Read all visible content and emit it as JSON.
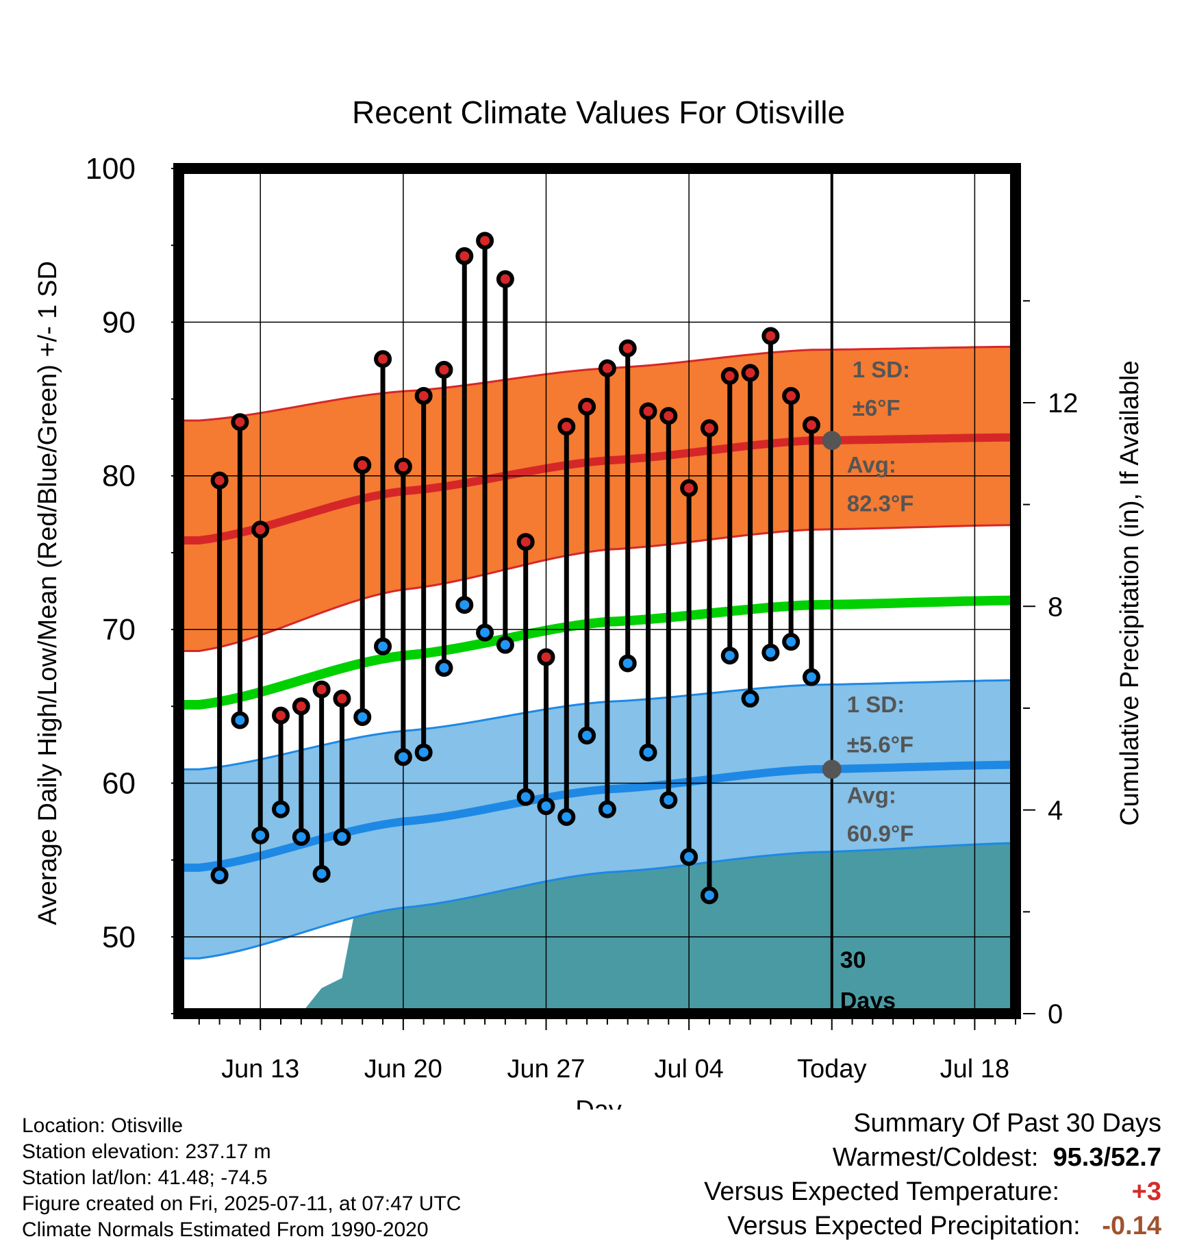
{
  "chart_data": {
    "type": "line",
    "title": "Recent Climate Values For Otisville",
    "xlabel": "Day",
    "ylabel": "Average Daily High/Low/Mean (Red/Blue/Green) +/- 1 SD",
    "y2label": "Cumulative Precipitation (in), If Available",
    "ylim": [
      45,
      100
    ],
    "y2lim": [
      0,
      16.6
    ],
    "yticks": [
      "50",
      "60",
      "70",
      "80",
      "90",
      "100"
    ],
    "y2ticks": [
      "0",
      "4",
      "8",
      "12"
    ],
    "xticks": [
      {
        "day": 3,
        "label": "Jun 13"
      },
      {
        "day": 10,
        "label": "Jun 20"
      },
      {
        "day": 17,
        "label": "Jun 27"
      },
      {
        "day": 24,
        "label": "Jul 04"
      },
      {
        "day": 31,
        "label": "Today"
      },
      {
        "day": 38,
        "label": "Jul 18"
      }
    ],
    "today_day": 31,
    "days_label": "30 Days",
    "observed_days": [
      1,
      2,
      3,
      4,
      5,
      6,
      7,
      8,
      9,
      10,
      11,
      12,
      13,
      14,
      15,
      16,
      17,
      18,
      19,
      20,
      21,
      22,
      23,
      24,
      25,
      26,
      27,
      28,
      29,
      30
    ],
    "observed_highs": [
      79.7,
      83.5,
      76.5,
      64.4,
      65.0,
      66.1,
      65.5,
      80.7,
      87.6,
      80.6,
      85.2,
      86.9,
      94.3,
      95.3,
      92.8,
      75.7,
      68.2,
      83.2,
      84.5,
      87.0,
      88.3,
      84.2,
      83.9,
      79.2,
      83.1,
      86.5,
      86.7,
      89.1,
      85.2,
      83.3
    ],
    "observed_lows": [
      54.0,
      64.1,
      56.6,
      58.3,
      56.5,
      54.1,
      56.5,
      64.3,
      68.9,
      61.7,
      62.0,
      67.5,
      71.6,
      69.8,
      69.0,
      59.1,
      58.5,
      57.8,
      63.1,
      58.3,
      67.8,
      62.0,
      58.9,
      55.2,
      52.7,
      68.3,
      65.5,
      68.5,
      69.2,
      66.9
    ],
    "normal_high": {
      "x": [
        0,
        10,
        20,
        30,
        40
      ],
      "avg": [
        75.8,
        79.0,
        81.0,
        82.3,
        82.5
      ],
      "upper": [
        83.6,
        85.5,
        87.0,
        88.2,
        88.4
      ],
      "lower": [
        68.6,
        72.6,
        75.2,
        76.5,
        76.8
      ]
    },
    "normal_low": {
      "x": [
        0,
        10,
        20,
        30,
        40
      ],
      "avg": [
        54.5,
        57.5,
        59.6,
        60.9,
        61.2
      ],
      "upper": [
        60.9,
        63.4,
        65.3,
        66.4,
        66.7
      ],
      "lower": [
        48.6,
        51.9,
        54.2,
        55.5,
        56.1
      ]
    },
    "normal_mean": {
      "x": [
        0,
        10,
        20,
        30,
        40
      ],
      "avg": [
        65.1,
        68.3,
        70.5,
        71.6,
        71.9
      ]
    },
    "precip_steps": [
      {
        "day": 5,
        "value": 0.0
      },
      {
        "day": 6,
        "value": 0.5
      },
      {
        "day": 7,
        "value": 0.7
      },
      {
        "day": 8,
        "value": 2.8
      },
      {
        "day": 11,
        "value": 2.9
      },
      {
        "day": 12,
        "value": 3.0
      },
      {
        "day": 16,
        "value": 3.1
      },
      {
        "day": 20,
        "value": 3.1
      },
      {
        "day": 21,
        "value": 3.6
      },
      {
        "day": 22,
        "value": 3.6
      },
      {
        "day": 23,
        "value": 4.0
      },
      {
        "day": 40,
        "value": 4.0
      }
    ],
    "annotations": {
      "high_sd": "1 SD:",
      "high_sd_val": "±6°F",
      "high_avg": "Avg:",
      "high_avg_val": "82.3°F",
      "low_sd": "1 SD:",
      "low_sd_val": "±5.6°F",
      "low_avg": "Avg:",
      "low_avg_val": "60.9°F"
    },
    "colors": {
      "high_band": "#f47b31",
      "high_line": "#d62728",
      "low_band": "#85c1e8",
      "low_line": "#1e88e5",
      "mean_line": "#00d000",
      "precip": "#4a9aa3",
      "high_dot": "#d62728",
      "low_dot": "#2196f3",
      "annotation": "#555555"
    }
  },
  "info": {
    "location": "Location: Otisville",
    "elevation": "Station elevation: 237.17 m",
    "latlon": "Station lat/lon: 41.48; -74.5",
    "created": "Figure created on Fri, 2025-07-11, at 07:47 UTC",
    "normals": "Climate Normals Estimated From 1990-2020"
  },
  "summary": {
    "title": "Summary Of Past 30 Days",
    "warm_label": "Warmest/Coldest:",
    "warm_value": "95.3/52.7",
    "temp_label": "Versus Expected Temperature:",
    "temp_value": "+3",
    "precip_label": "Versus Expected Precipitation:",
    "precip_value": "-0.14"
  }
}
